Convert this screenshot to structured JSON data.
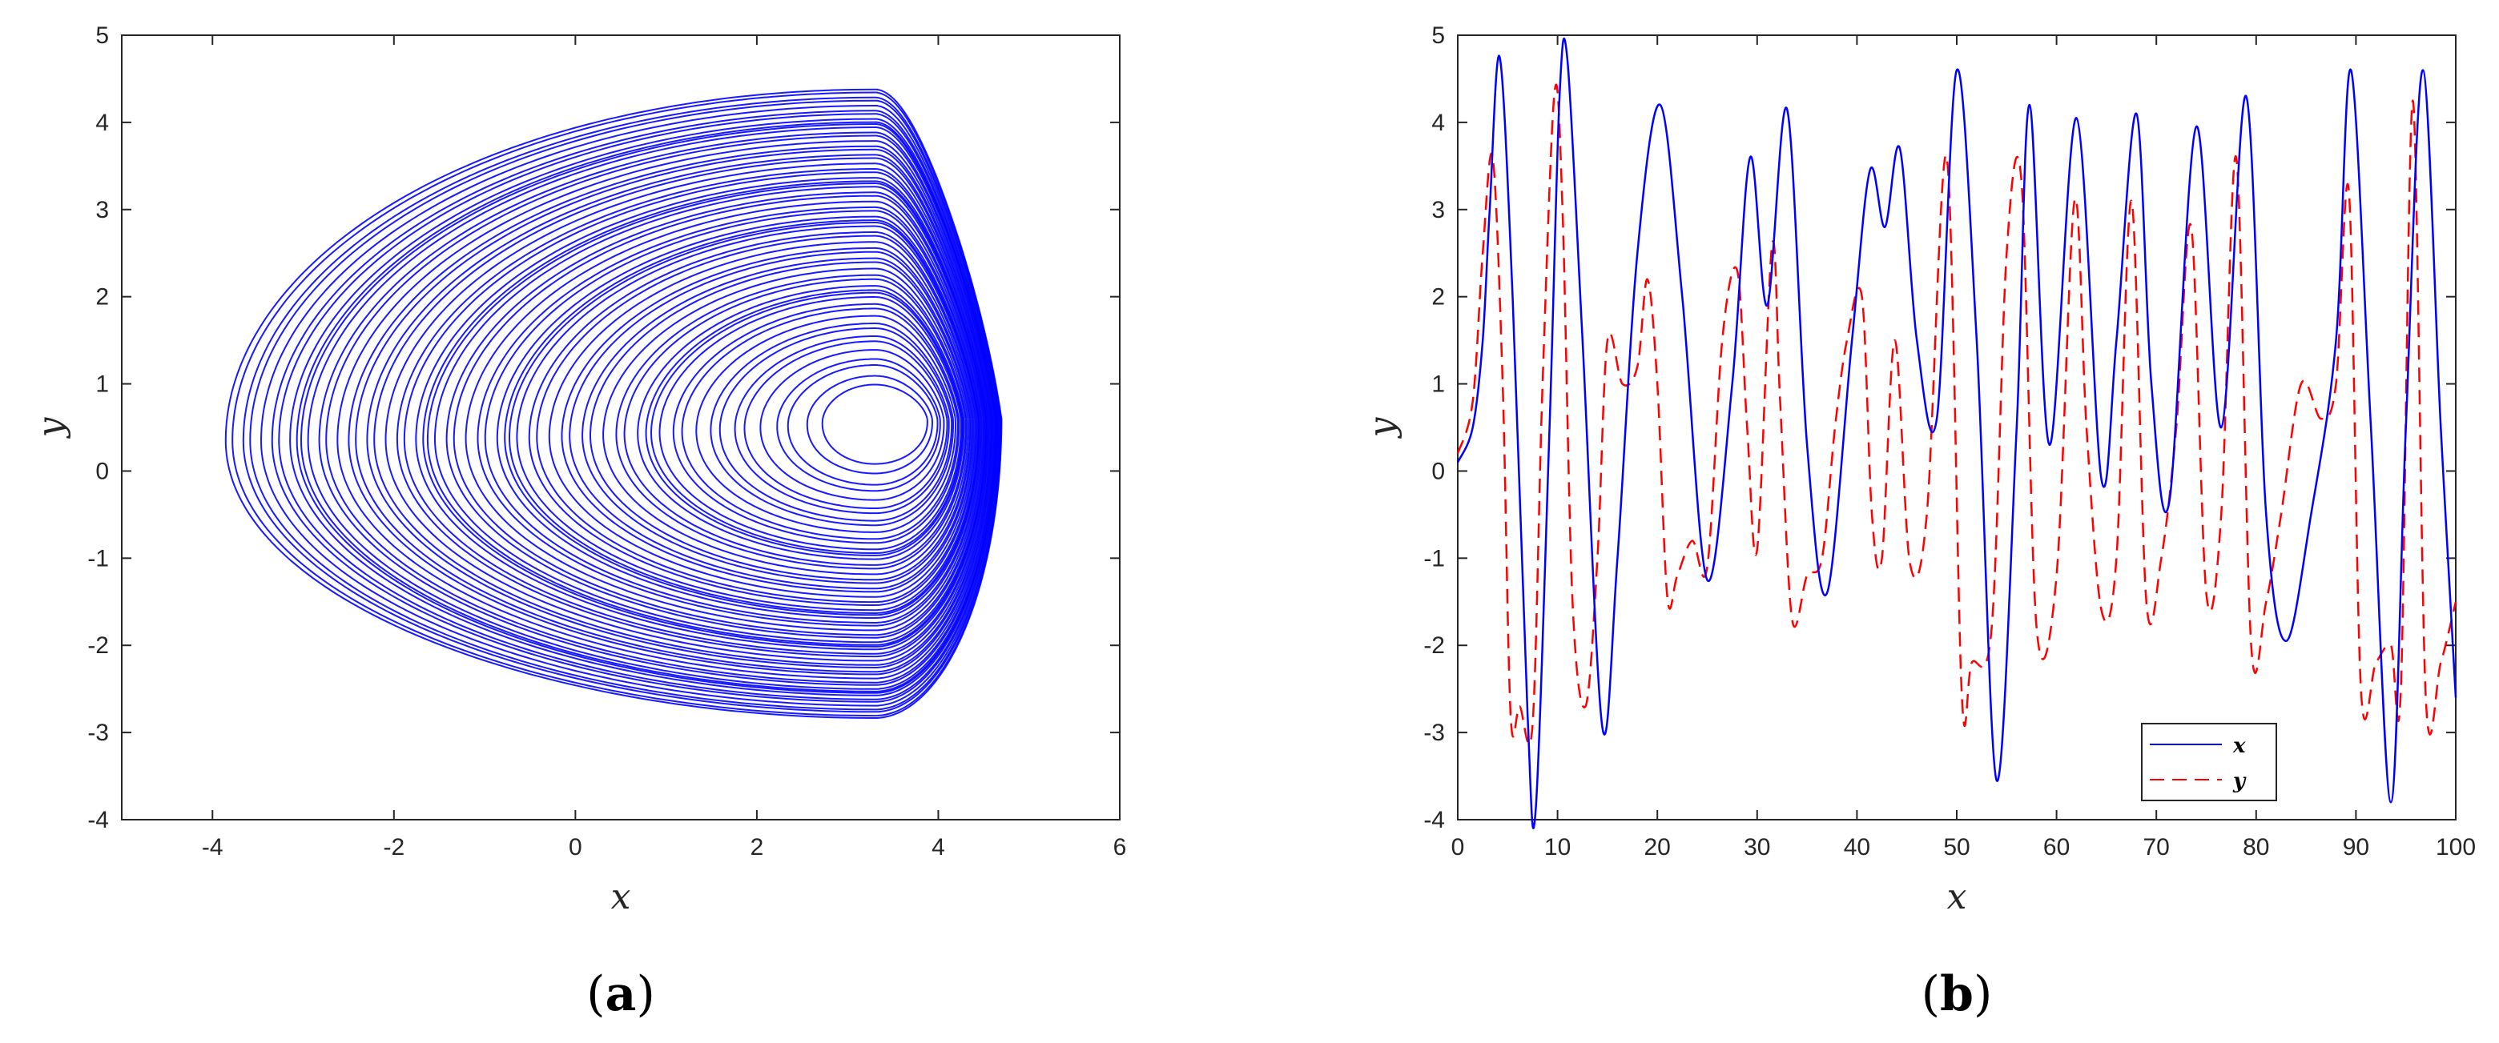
{
  "chart_data": [
    {
      "type": "line",
      "panel_label": "a",
      "xlabel": "x",
      "ylabel": "y",
      "xlim": [
        -5,
        6
      ],
      "ylim": [
        -4,
        5
      ],
      "x_ticks": [
        -4,
        -2,
        0,
        2,
        4,
        6
      ],
      "y_ticks": [
        -4,
        -3,
        -2,
        -1,
        0,
        1,
        2,
        3,
        4,
        5
      ],
      "grid": false,
      "series": [
        {
          "color": "#0000ff",
          "style": "solid",
          "shape": "chaotic phase-portrait attractor",
          "loops": 60,
          "x_range_drawn": [
            -3.9,
            4.7
          ],
          "y_range_drawn": [
            -2.85,
            4.4
          ],
          "focus": [
            3.3,
            0.6
          ]
        }
      ]
    },
    {
      "type": "line",
      "panel_label": "b",
      "xlabel": "x",
      "ylabel": "y",
      "xlim": [
        0,
        100
      ],
      "ylim": [
        -4,
        5
      ],
      "x_ticks": [
        0,
        10,
        20,
        30,
        40,
        50,
        60,
        70,
        80,
        90,
        100
      ],
      "y_ticks": [
        -4,
        -3,
        -2,
        -1,
        0,
        1,
        2,
        3,
        4,
        5
      ],
      "grid": false,
      "legend": "bottom-right",
      "series": [
        {
          "name": "x",
          "color": "#0000ff",
          "style": "solid",
          "x": [
            0,
            1.5,
            2.5,
            3.2,
            4.2,
            5.5,
            7.0,
            7.8,
            9.2,
            10.2,
            11.0,
            12.5,
            14.5,
            16.0,
            18.0,
            20.3,
            22.5,
            25.0,
            27.5,
            29.3,
            31.0,
            33.0,
            35.0,
            37.0,
            39.5,
            41.3,
            42.8,
            44.3,
            46.0,
            48.0,
            50.0,
            52.0,
            54.0,
            56.0,
            57.3,
            59.3,
            62.0,
            64.5,
            66.0,
            68.0,
            69.5,
            71.3,
            74.0,
            76.5,
            79.0,
            81.0,
            83.0,
            85.5,
            88.0,
            89.5,
            91.5,
            93.5,
            95.0,
            96.7,
            98.5,
            100
          ],
          "y": [
            0.1,
            0.5,
            1.5,
            3.0,
            4.75,
            2.0,
            -2.8,
            -3.9,
            0.5,
            4.3,
            4.7,
            1.5,
            -2.95,
            -1.0,
            2.5,
            4.2,
            2.0,
            -1.25,
            1.0,
            3.6,
            1.9,
            4.15,
            0.3,
            -1.4,
            1.5,
            3.45,
            2.8,
            3.7,
            1.5,
            0.6,
            4.6,
            1.5,
            -3.55,
            0.5,
            4.2,
            0.3,
            4.05,
            -0.1,
            1.5,
            4.1,
            1.0,
            -0.35,
            3.95,
            0.5,
            4.3,
            -0.5,
            -1.95,
            -0.5,
            1.5,
            4.6,
            0.5,
            -3.8,
            0.5,
            4.6,
            0.5,
            -2.6
          ]
        },
        {
          "name": "y",
          "color": "#ff0000",
          "style": "dashed",
          "x": [
            0,
            1.5,
            2.5,
            3.5,
            4.5,
            5.3,
            6.2,
            7.5,
            8.5,
            9.7,
            10.5,
            11.5,
            12.8,
            14.0,
            15.0,
            16.5,
            18.0,
            19.0,
            20.0,
            21.0,
            22.0,
            23.5,
            25.0,
            26.5,
            28.0,
            29.0,
            30.0,
            31.5,
            32.3,
            33.5,
            35.0,
            36.5,
            37.8,
            39.0,
            40.5,
            41.5,
            42.5,
            43.8,
            45.3,
            47.0,
            49.0,
            50.5,
            51.5,
            53.5,
            55.0,
            56.5,
            58.0,
            60.0,
            61.8,
            63.0,
            64.5,
            66.0,
            67.5,
            69.0,
            70.5,
            72.0,
            73.5,
            75.0,
            76.5,
            78.0,
            79.5,
            81.0,
            82.5,
            84.5,
            86.5,
            88.0,
            89.3,
            90.5,
            92.0,
            93.5,
            94.5,
            95.7,
            97.0,
            98.5,
            100
          ],
          "y": [
            0.2,
            0.8,
            2.5,
            3.6,
            1.0,
            -2.8,
            -2.7,
            -2.9,
            1.0,
            4.35,
            3.0,
            -1.5,
            -2.7,
            -1.0,
            1.5,
            1.0,
            1.2,
            2.2,
            1.0,
            -1.45,
            -1.2,
            -0.8,
            -1.1,
            1.5,
            2.3,
            0.5,
            -0.9,
            2.6,
            0.8,
            -1.7,
            -1.2,
            -1.0,
            0.5,
            1.5,
            2.0,
            -0.5,
            -1.0,
            1.5,
            -1.05,
            -0.5,
            3.6,
            -2.55,
            -2.2,
            -1.8,
            2.5,
            3.3,
            -1.8,
            -1.2,
            3.1,
            0.5,
            -1.6,
            -1.0,
            3.1,
            -1.5,
            -1.0,
            0.5,
            2.8,
            -1.4,
            -0.5,
            3.6,
            -2.0,
            -1.5,
            -0.5,
            1.0,
            0.6,
            1.0,
            3.2,
            -2.5,
            -2.2,
            -2.0,
            -2.5,
            4.25,
            -2.6,
            -2.2,
            -1.5
          ]
        }
      ]
    }
  ]
}
